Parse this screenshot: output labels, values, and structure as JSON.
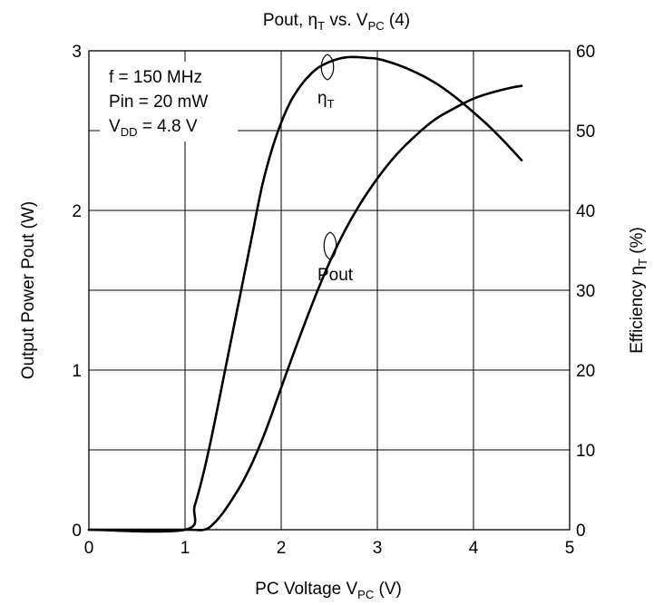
{
  "chart_data": {
    "type": "line",
    "title": {
      "text": "Pout, ",
      "symbol": "η",
      "symbol_sub": "T",
      "mid": " vs. V",
      "sub": "PC",
      "tail": " (4)"
    },
    "xlabel": {
      "text": "PC Voltage  V",
      "sub": "PC",
      "tail": "  (V)"
    },
    "ylabel_left": "Output Power  Pout  (W)",
    "ylabel_right": {
      "text": "Efficiency  ",
      "symbol": "η",
      "sub": "T",
      "tail": "  (%)"
    },
    "xlim": [
      0,
      5
    ],
    "ylim_left": [
      0,
      3
    ],
    "ylim_right": [
      0,
      60
    ],
    "x_ticks": [
      "0",
      "1",
      "2",
      "3",
      "4",
      "5"
    ],
    "y_left_ticks": [
      "0",
      "1",
      "2",
      "3"
    ],
    "y_right_ticks": [
      "0",
      "10",
      "20",
      "30",
      "40",
      "50",
      "60"
    ],
    "grid": true,
    "conditions": {
      "line1": "f = 150 MHz",
      "line2": "Pin = 20 mW",
      "line3_main": "V",
      "line3_sub": "DD",
      "line3_tail": " = 4.8 V"
    },
    "series": [
      {
        "name": "Pout",
        "label": "Pout",
        "axis": "left",
        "x": [
          0,
          1.0,
          1.2,
          1.3,
          1.4,
          1.5,
          1.6,
          1.7,
          1.8,
          1.9,
          2.0,
          2.2,
          2.4,
          2.6,
          2.8,
          3.0,
          3.2,
          3.4,
          3.6,
          3.8,
          4.0,
          4.2,
          4.4,
          4.5
        ],
        "values": [
          0,
          0,
          0,
          0.04,
          0.11,
          0.2,
          0.3,
          0.42,
          0.56,
          0.72,
          0.89,
          1.22,
          1.53,
          1.8,
          2.02,
          2.2,
          2.35,
          2.47,
          2.57,
          2.64,
          2.7,
          2.74,
          2.77,
          2.78
        ]
      },
      {
        "name": "ηT",
        "label_main": "η",
        "label_sub": "T",
        "axis": "right",
        "x": [
          0,
          1.0,
          1.1,
          1.2,
          1.3,
          1.4,
          1.5,
          1.6,
          1.7,
          1.8,
          1.9,
          2.0,
          2.1,
          2.2,
          2.3,
          2.4,
          2.5,
          2.6,
          2.7,
          2.8,
          2.9,
          3.0,
          3.2,
          3.4,
          3.6,
          3.8,
          4.0,
          4.2,
          4.4,
          4.5
        ],
        "values": [
          0,
          0,
          3,
          7.5,
          13,
          19,
          25,
          31,
          37,
          43,
          47.5,
          51,
          53.7,
          55.6,
          57,
          58,
          58.6,
          59,
          59.2,
          59.2,
          59.1,
          59,
          58.3,
          57.3,
          56,
          54.3,
          52.3,
          50.1,
          47.6,
          46.3
        ]
      }
    ]
  }
}
